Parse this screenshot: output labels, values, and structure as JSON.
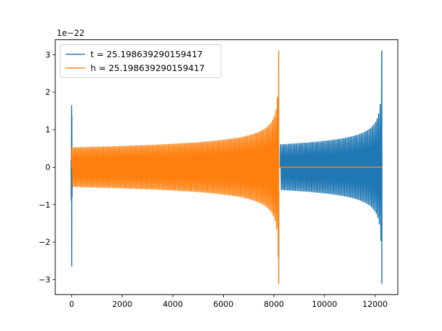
{
  "chart_data": {
    "type": "line",
    "title": "",
    "xlabel": "",
    "ylabel": "",
    "xlim": [
      -650,
      12900
    ],
    "ylim": [
      -3.4,
      3.4
    ],
    "y_offset_label": "1e−22",
    "x_ticks": [
      0,
      2000,
      4000,
      6000,
      8000,
      10000,
      12000
    ],
    "x_tick_labels": [
      "0",
      "2000",
      "4000",
      "6000",
      "8000",
      "10000",
      "12000"
    ],
    "y_ticks": [
      -3,
      -2,
      -1,
      0,
      1,
      2,
      3
    ],
    "y_tick_labels": [
      "−3",
      "−2",
      "−1",
      "0",
      "1",
      "2",
      "3"
    ],
    "grid": false,
    "legend_position": "top-left",
    "series": [
      {
        "name": "t = 25.198639290159417",
        "color": "#1f77b4",
        "description_points": [
          {
            "x": 0,
            "y": 1.65
          },
          {
            "x": 0,
            "y": -2.65
          },
          {
            "x": 8250,
            "y": 0.6
          },
          {
            "x": 8250,
            "y": -0.6
          },
          {
            "x": 12000,
            "y": 1.2
          },
          {
            "x": 12000,
            "y": -1.2
          },
          {
            "x": 12270,
            "y": 3.1
          },
          {
            "x": 12270,
            "y": -3.1
          }
        ],
        "segments": [
          {
            "start": -30,
            "end": 30,
            "amp_top": 1.65,
            "amp_bottom": -2.65,
            "kind": "spike"
          },
          {
            "start": 8250,
            "end": 12290,
            "amp_start": 0.6,
            "chirp_end": 12270,
            "peak": 3.1,
            "kind": "chirp"
          }
        ]
      },
      {
        "name": "h = 25.198639290159417",
        "color": "#ff7f0e",
        "segments": [
          {
            "start": 0,
            "end": 8200,
            "amp_start": 0.52,
            "chirp_end": 8190,
            "peak": 3.1,
            "kind": "chirp"
          },
          {
            "start": 8200,
            "end": 12290,
            "value": 0,
            "kind": "flat"
          }
        ]
      }
    ]
  }
}
